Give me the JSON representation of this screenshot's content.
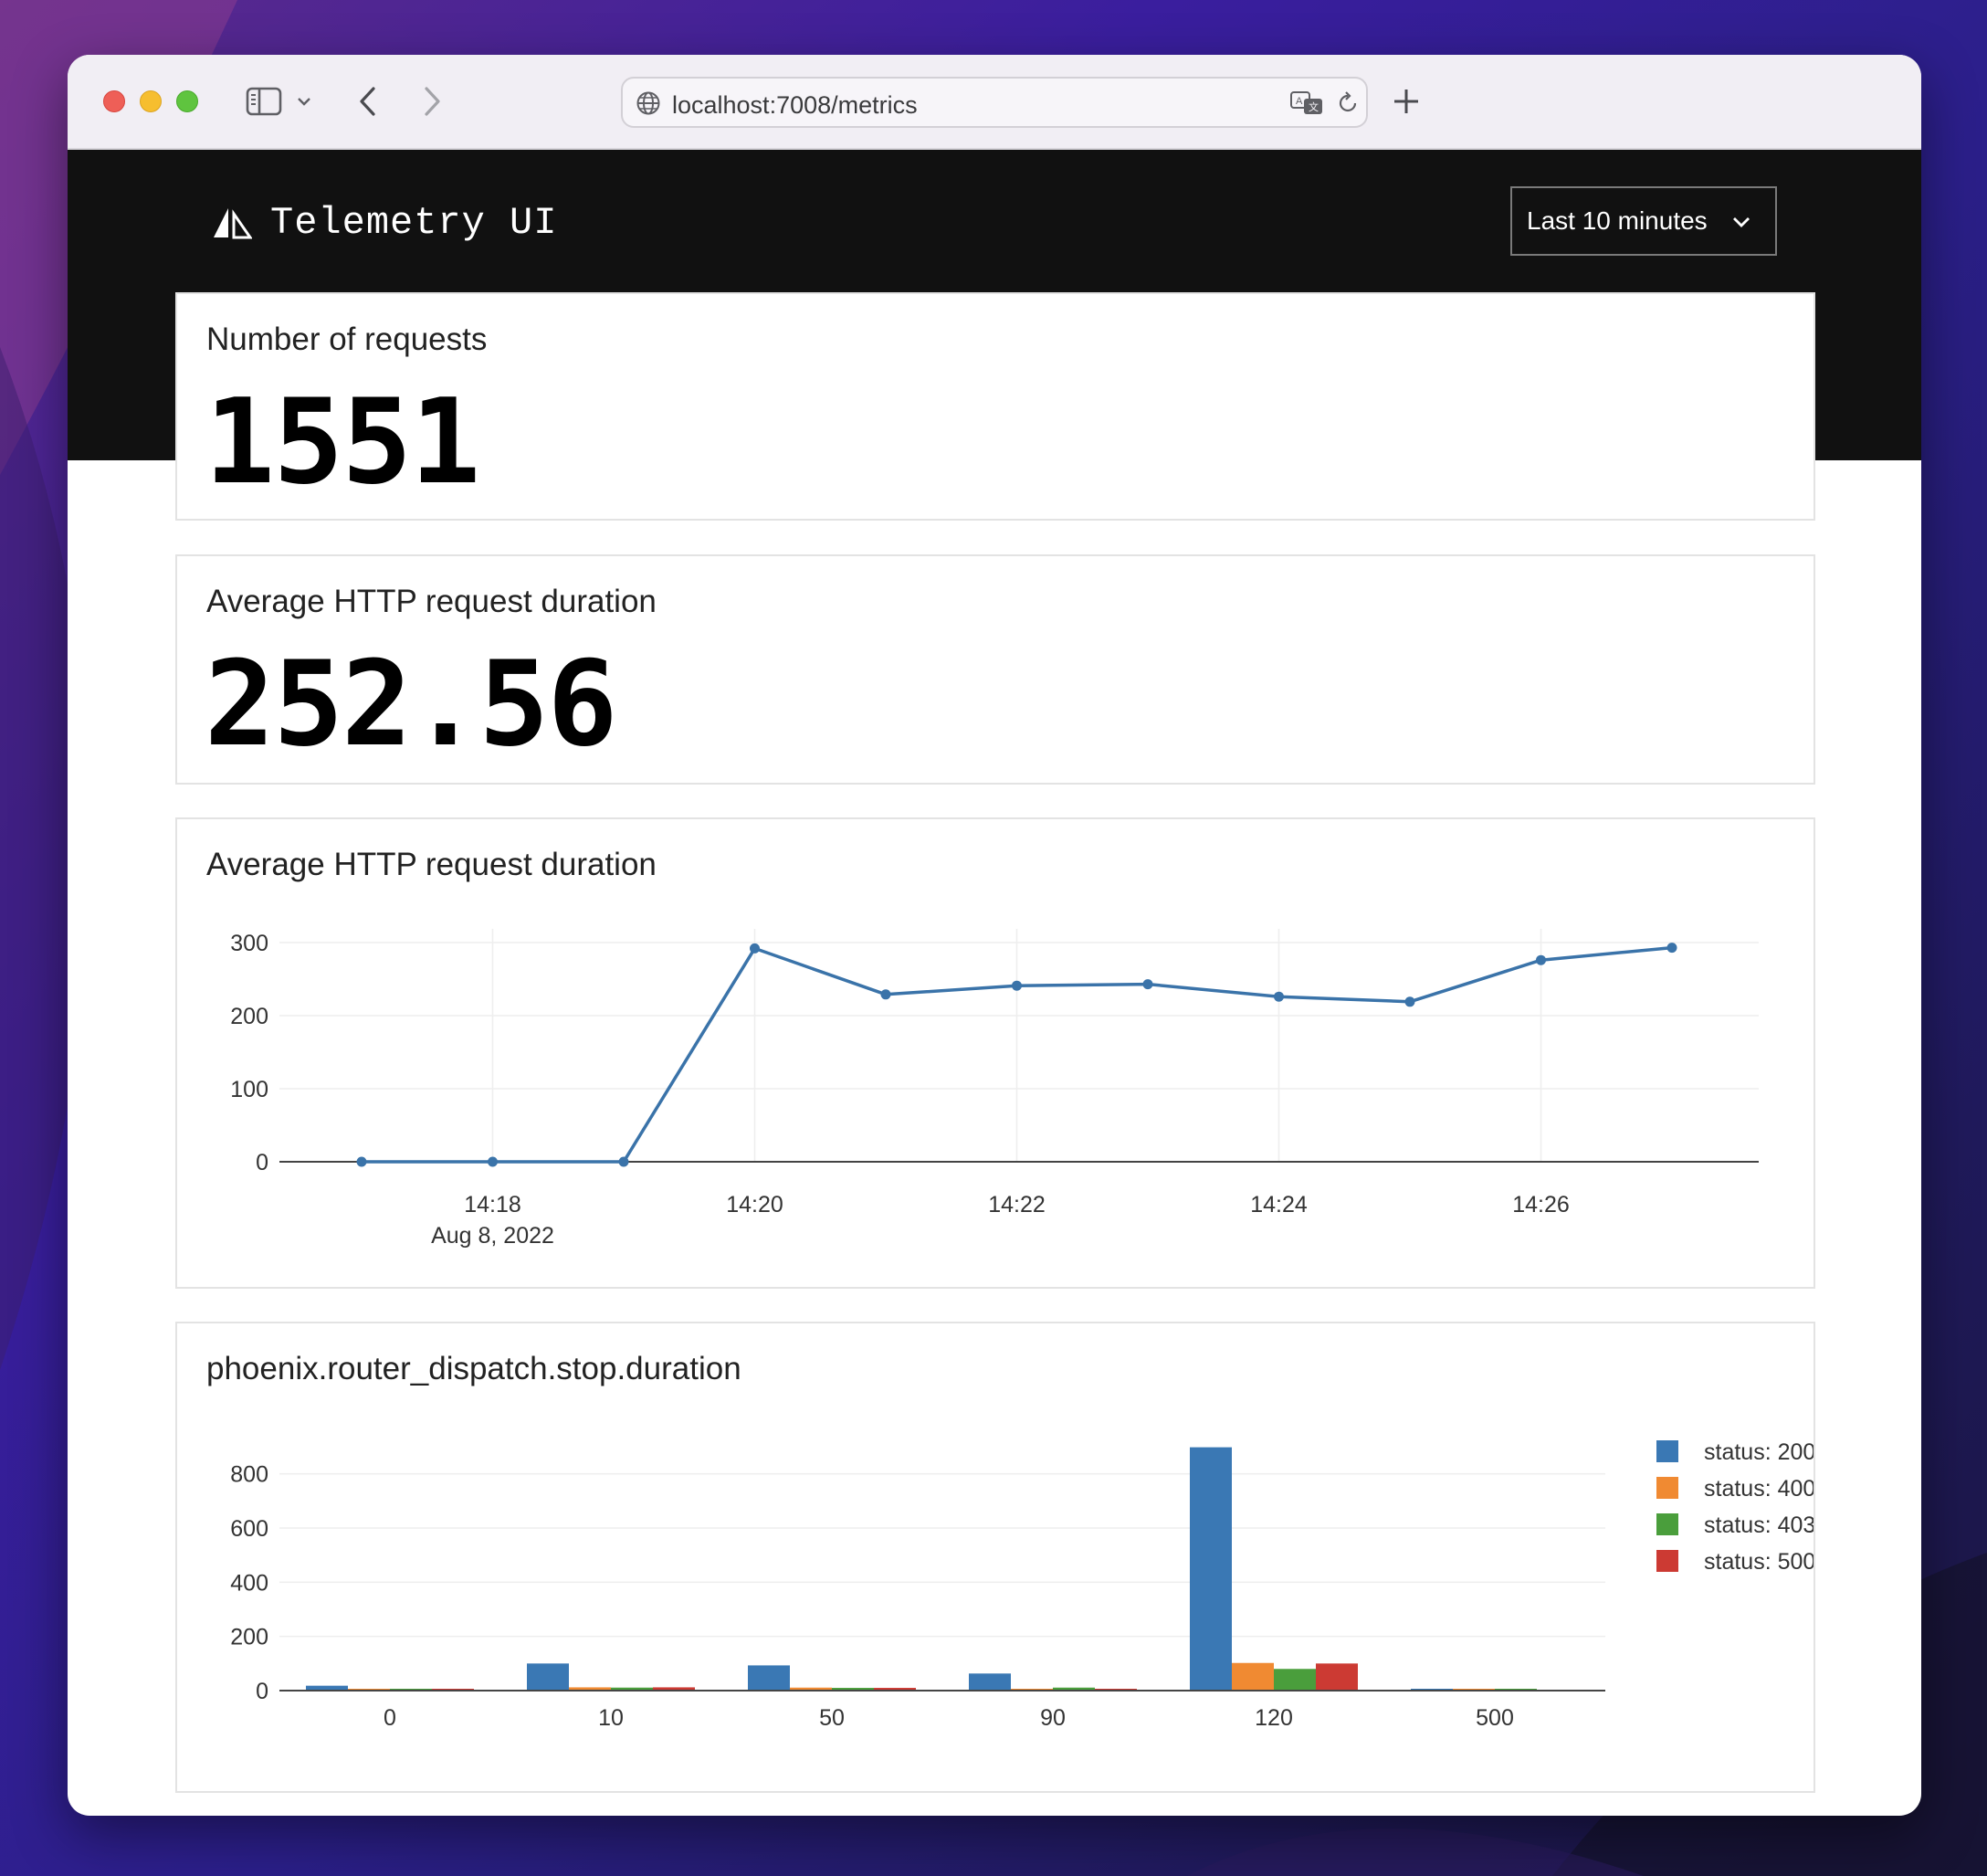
{
  "browser": {
    "url": "localhost:7008/metrics",
    "icons": [
      "sidebar-toggle-icon",
      "chevron-down-icon",
      "back-arrow-icon",
      "forward-arrow-icon",
      "globe-icon",
      "translate-icon",
      "reload-icon",
      "plus-icon"
    ]
  },
  "header": {
    "brand_name": "Telemetry UI",
    "time_range": "Last 10 minutes"
  },
  "colors": {
    "header_bg": "#111111",
    "line": "#3a73a9",
    "status_200": "#3a78b4",
    "status_400": "#f08a32",
    "status_403": "#4a9e3c",
    "status_500": "#cc3a33"
  },
  "cards": {
    "requests": {
      "title": "Number of requests",
      "value": "1551"
    },
    "avg_duration": {
      "title": "Average HTTP request duration",
      "value": "252.56"
    },
    "duration_chart": {
      "title": "Average HTTP request duration"
    },
    "histogram": {
      "title": "phoenix.router_dispatch.stop.duration"
    }
  },
  "chart_data": [
    {
      "type": "line",
      "title": "Average HTTP request duration",
      "x": [
        "14:17",
        "14:18",
        "14:19",
        "14:20",
        "14:21",
        "14:22",
        "14:23",
        "14:24",
        "14:25",
        "14:26",
        "14:27"
      ],
      "values": [
        0,
        0,
        0,
        292,
        229,
        241,
        243,
        226,
        219,
        276,
        293
      ],
      "ylim": [
        0,
        300
      ],
      "y_ticks": [
        "0",
        "100",
        "200",
        "300"
      ],
      "x_ticks": [
        "14:18",
        "14:20",
        "14:22",
        "14:24",
        "14:26"
      ],
      "x_tick_sub": "Aug 8, 2022",
      "grid": true
    },
    {
      "type": "bar",
      "title": "phoenix.router_dispatch.stop.duration",
      "categories": [
        "0",
        "10",
        "50",
        "90",
        "120",
        "500"
      ],
      "series": [
        {
          "name": "status: 200",
          "values": [
            18,
            100,
            93,
            63,
            898,
            4
          ]
        },
        {
          "name": "status: 400",
          "values": [
            2,
            12,
            11,
            5,
            102,
            2
          ]
        },
        {
          "name": "status: 403",
          "values": [
            5,
            11,
            10,
            11,
            80,
            3
          ]
        },
        {
          "name": "status: 500",
          "values": [
            5,
            12,
            10,
            6,
            100,
            0
          ]
        }
      ],
      "ylim": [
        0,
        900
      ],
      "y_ticks": [
        "0",
        "200",
        "400",
        "600",
        "800"
      ],
      "legend": "right",
      "grid": true
    }
  ]
}
